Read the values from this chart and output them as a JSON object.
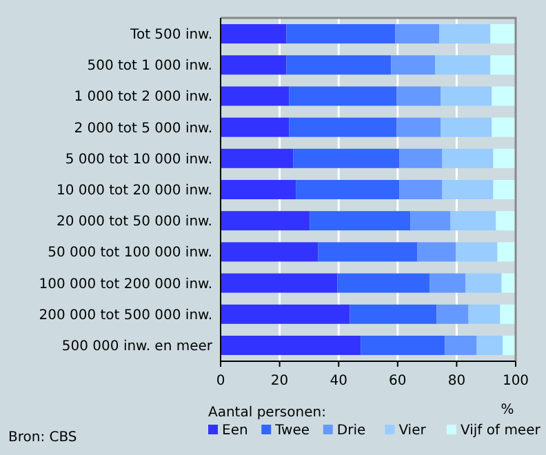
{
  "chart_data": {
    "type": "bar",
    "orientation": "horizontal",
    "stacked": true,
    "categories": [
      "Tot 500 inw.",
      "500 tot 1 000 inw.",
      "1 000 tot 2 000 inw.",
      "2 000 tot 5 000 inw.",
      "5 000 tot 10 000 inw.",
      "10 000 tot 20 000 inw.",
      "20 000 tot 50 000 inw.",
      "50 000 tot 100 000 inw.",
      "100 000 tot 200 000 inw.",
      "200 000 tot 500 000 inw.",
      "500 000 inw. en meer"
    ],
    "series": [
      {
        "name": "Een",
        "color": "#3333ff",
        "values": [
          22.3,
          22.3,
          23.2,
          23.2,
          24.6,
          25.5,
          30.2,
          33.0,
          39.6,
          43.8,
          47.5
        ]
      },
      {
        "name": "Twee",
        "color": "#3366ff",
        "values": [
          36.9,
          35.5,
          36.5,
          36.5,
          36.0,
          35.1,
          34.1,
          33.7,
          31.3,
          29.4,
          28.5
        ]
      },
      {
        "name": "Drie",
        "color": "#6699ff",
        "values": [
          14.9,
          14.9,
          14.9,
          14.9,
          14.5,
          14.5,
          13.6,
          13.1,
          12.1,
          10.8,
          10.8
        ]
      },
      {
        "name": "Vier",
        "color": "#99ccff",
        "values": [
          17.3,
          18.7,
          17.3,
          17.3,
          17.3,
          17.3,
          15.4,
          14.0,
          12.2,
          10.7,
          8.8
        ]
      },
      {
        "name": "Vijf of meer",
        "color": "#ccffff",
        "values": [
          8.6,
          8.6,
          8.1,
          8.1,
          7.6,
          7.6,
          6.7,
          6.2,
          4.8,
          5.3,
          4.4
        ]
      }
    ],
    "xlim": [
      0,
      100
    ],
    "xticks": [
      0,
      20,
      40,
      60,
      80,
      100
    ],
    "xlabel": "%",
    "legend_title": "Aantal personen:",
    "legend": "bottom",
    "grid": "x",
    "annotations": [
      "Bron: CBS"
    ]
  }
}
